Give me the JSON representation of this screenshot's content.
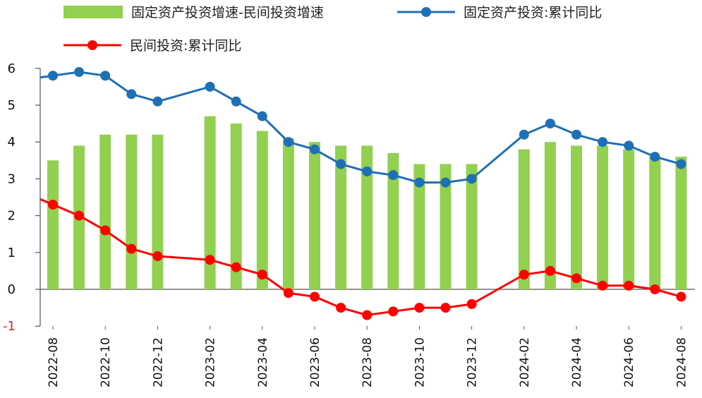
{
  "chart_data": {
    "type": "bar+line",
    "categories": [
      "2022-08",
      "2022-09",
      "2022-10",
      "2022-11",
      "2022-12",
      "2023-01",
      "2023-02",
      "2023-03",
      "2023-04",
      "2023-05",
      "2023-06",
      "2023-07",
      "2023-08",
      "2023-09",
      "2023-10",
      "2023-11",
      "2023-12",
      "2024-01",
      "2024-02",
      "2024-03",
      "2024-04",
      "2024-05",
      "2024-06",
      "2024-07",
      "2024-08"
    ],
    "tick_labels": [
      "2022-08",
      "2022-10",
      "2022-12",
      "2023-02",
      "2023-04",
      "2023-06",
      "2023-08",
      "2023-10",
      "2023-12",
      "2024-02",
      "2024-04",
      "2024-06",
      "2024-08"
    ],
    "series": [
      {
        "name": "固定资产投资增速-民间投资增速",
        "kind": "bar",
        "color": "#92d050",
        "values": [
          3.5,
          3.9,
          4.2,
          4.2,
          4.2,
          null,
          4.7,
          4.5,
          4.3,
          4.1,
          4.0,
          3.9,
          3.9,
          3.7,
          3.4,
          3.4,
          3.4,
          null,
          3.8,
          4.0,
          3.9,
          3.9,
          3.8,
          3.6,
          3.6
        ]
      },
      {
        "name": "固定资产投资:累计同比",
        "kind": "line",
        "color": "#1f6fb5",
        "values": [
          5.8,
          5.9,
          5.8,
          5.3,
          5.1,
          null,
          5.5,
          5.1,
          4.7,
          4.0,
          3.8,
          3.4,
          3.2,
          3.1,
          2.9,
          2.9,
          3.0,
          null,
          4.2,
          4.5,
          4.2,
          4.0,
          3.9,
          3.6,
          3.4
        ]
      },
      {
        "name": "民间投资:累计同比",
        "kind": "line",
        "color": "#ff0000",
        "values": [
          2.3,
          2.0,
          1.6,
          1.1,
          0.9,
          null,
          0.8,
          0.6,
          0.4,
          -0.1,
          -0.2,
          -0.5,
          -0.7,
          -0.6,
          -0.5,
          -0.5,
          -0.4,
          null,
          0.4,
          0.5,
          0.3,
          0.1,
          0.1,
          0.0,
          -0.2
        ]
      }
    ],
    "y_ticks": [
      "6",
      "5",
      "4",
      "3",
      "2",
      "1",
      "0",
      "-1"
    ],
    "ylim": [
      -1,
      6
    ],
    "legend": "top",
    "grid": false
  }
}
